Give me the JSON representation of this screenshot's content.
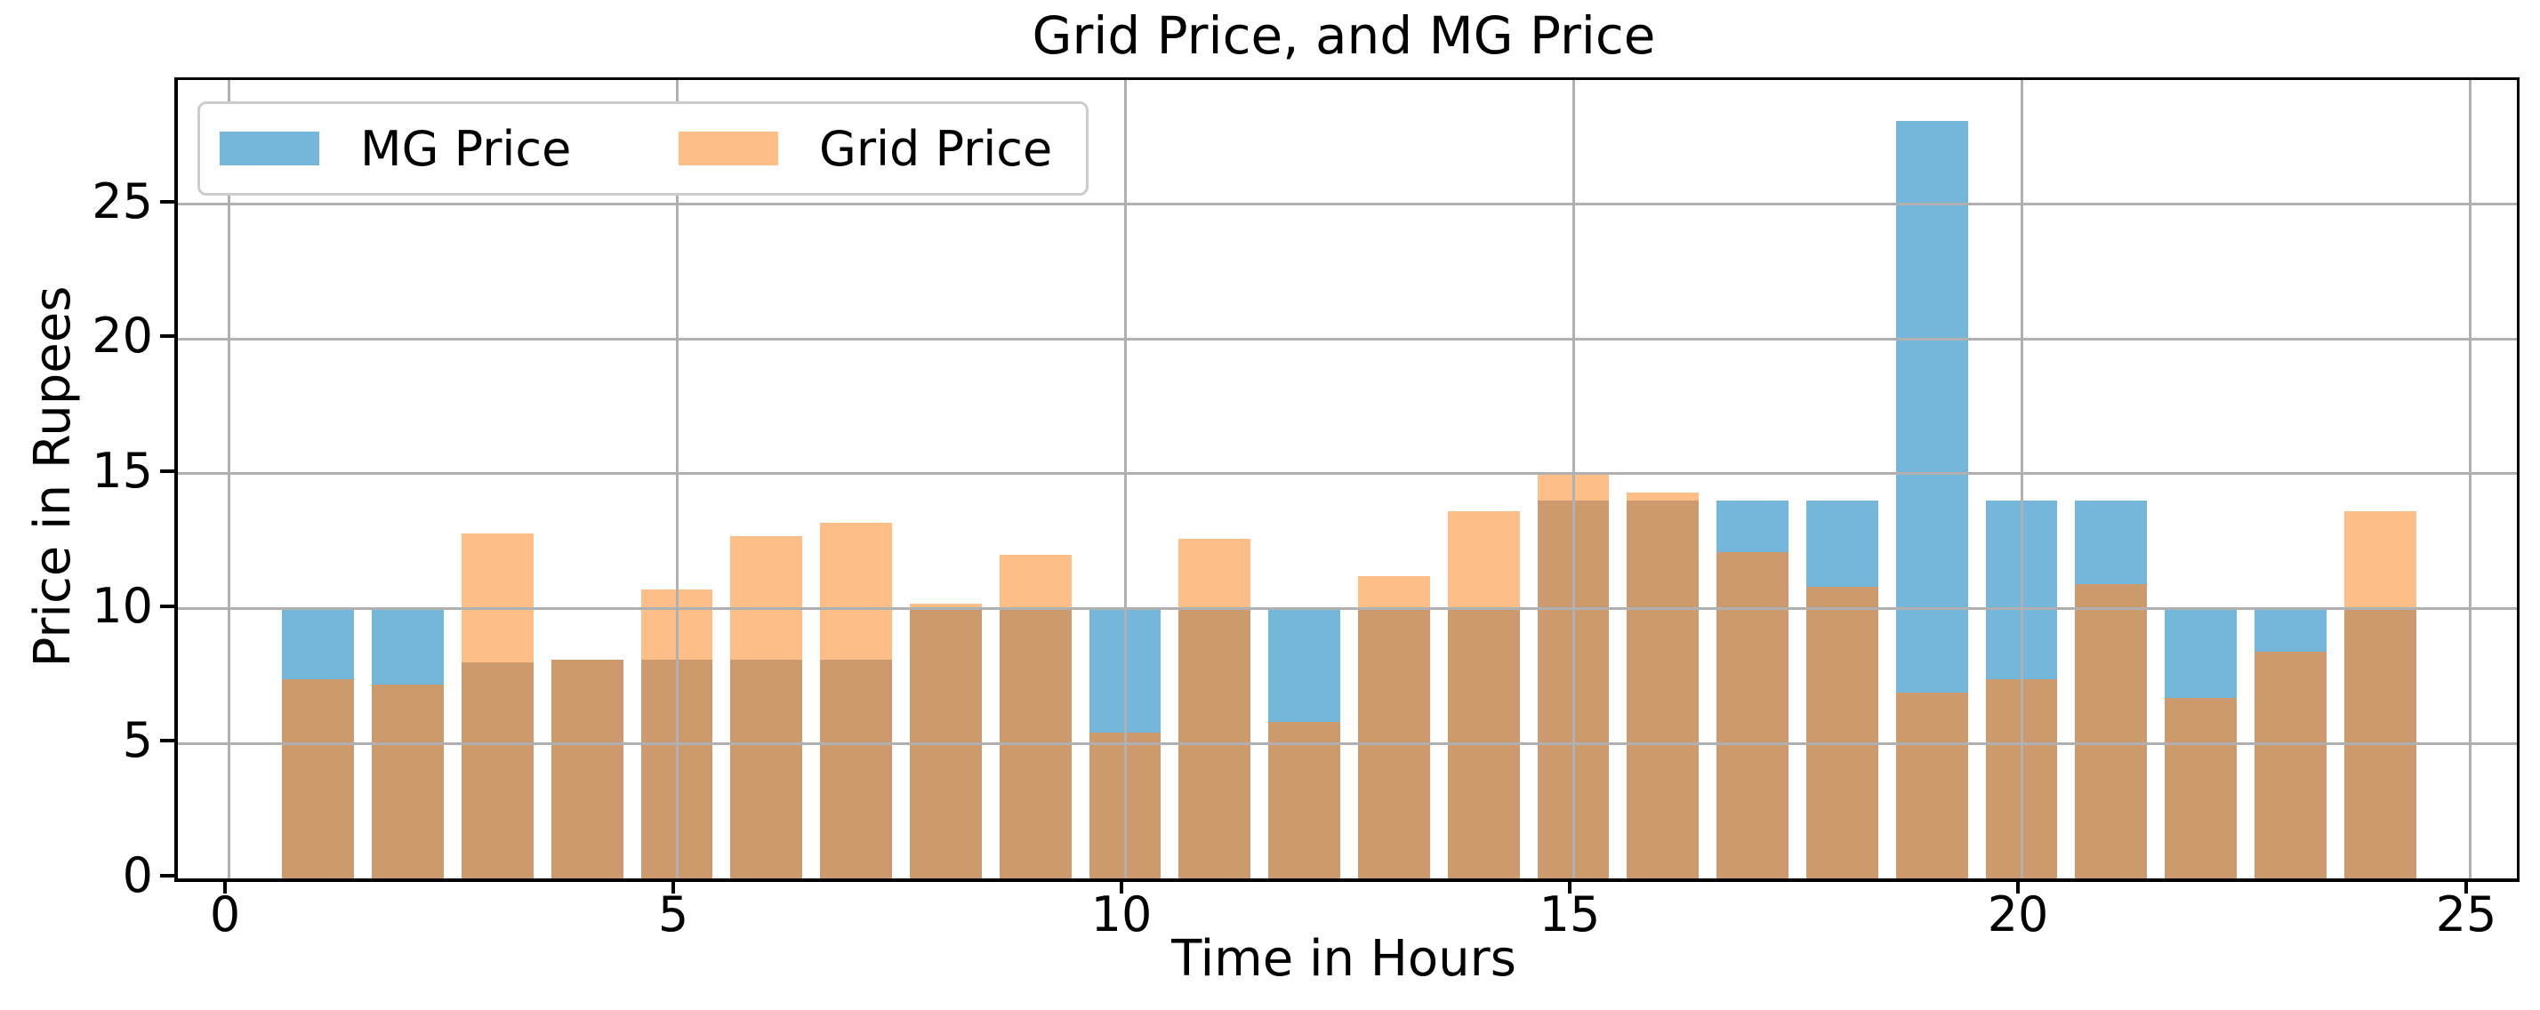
{
  "figure": {
    "title": "Grid Price, and MG Price",
    "xlabel": "Time in Hours",
    "ylabel": "Price in Rupees"
  },
  "legend": {
    "items": [
      {
        "label": "MG Price",
        "color": "#74b7db"
      },
      {
        "label": "Grid Price",
        "color": "#fdbe87"
      }
    ]
  },
  "chart_data": {
    "type": "bar",
    "title": "Grid Price, and MG Price",
    "xlabel": "Time in Hours",
    "ylabel": "Price in Rupees",
    "categories": [
      1,
      2,
      3,
      4,
      5,
      6,
      7,
      8,
      9,
      10,
      11,
      12,
      13,
      14,
      15,
      16,
      17,
      18,
      19,
      20,
      21,
      22,
      23,
      24
    ],
    "series": [
      {
        "name": "MG Price",
        "color": "#74b7db",
        "values": [
          10,
          10,
          8,
          8.1,
          8.1,
          8.1,
          8.1,
          10,
          10,
          10,
          10,
          10,
          10,
          10,
          14,
          14,
          14,
          14,
          28.1,
          14,
          14,
          10,
          10,
          10
        ]
      },
      {
        "name": "Grid Price",
        "color": "#fdbe87",
        "values": [
          7.4,
          7.2,
          12.8,
          8.1,
          10.7,
          12.7,
          13.2,
          10.2,
          12.0,
          5.4,
          12.6,
          5.8,
          11.2,
          13.6,
          15.0,
          14.3,
          12.1,
          10.8,
          6.9,
          7.4,
          10.9,
          6.7,
          8.4,
          13.6
        ]
      }
    ],
    "overlap_color": "#cc9a6c",
    "bar_style": "overlaid-transparent",
    "bar_width": 0.8,
    "xticks": [
      "0",
      "5",
      "10",
      "15",
      "20",
      "25"
    ],
    "yticks": [
      "0",
      "5",
      "10",
      "15",
      "20",
      "25"
    ],
    "xlim": [
      -0.57,
      25.53
    ],
    "ylim": [
      0,
      29.6
    ],
    "grid": true,
    "grid_color": "#b0b0b0",
    "legend_position": "upper left"
  }
}
